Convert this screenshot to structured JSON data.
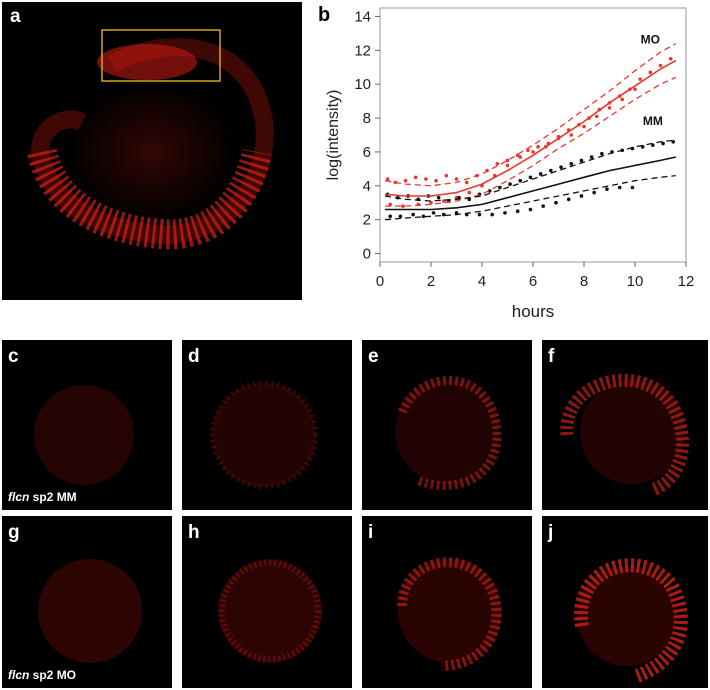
{
  "panels": {
    "a": {
      "letter": "a"
    },
    "b": {
      "letter": "b"
    },
    "c": {
      "letter": "c",
      "caption_italic": "flcn",
      "caption_rest": " sp2 MM"
    },
    "d": {
      "letter": "d"
    },
    "e": {
      "letter": "e"
    },
    "f": {
      "letter": "f"
    },
    "g": {
      "letter": "g",
      "caption_italic": "flcn",
      "caption_rest": " sp2 MO"
    },
    "h": {
      "letter": "h"
    },
    "i": {
      "letter": "i"
    },
    "j": {
      "letter": "j"
    }
  },
  "colors": {
    "mo": "#e8392e",
    "mm": "#111111",
    "signal": "#c81a14",
    "box": "#d8a21c"
  },
  "chart_data": {
    "type": "line",
    "xlabel": "hours",
    "ylabel": "log(intensity)",
    "xlim": [
      0,
      12
    ],
    "ylim": [
      -0.5,
      14.5
    ],
    "xticks": [
      0,
      2,
      4,
      6,
      8,
      10,
      12
    ],
    "yticks": [
      0,
      2,
      4,
      6,
      8,
      10,
      12,
      14
    ],
    "annotations": [
      {
        "text": "MO",
        "x": 10.6,
        "y": 12.4
      },
      {
        "text": "MM",
        "x": 10.7,
        "y": 7.6
      }
    ],
    "series": [
      {
        "name": "MO fit",
        "color": "#e8392e",
        "style": "solid",
        "x": [
          0.2,
          1,
          2,
          3,
          4,
          5,
          6,
          7,
          8,
          9,
          10,
          11,
          11.6
        ],
        "y": [
          3.5,
          3.4,
          3.4,
          3.6,
          4.1,
          4.9,
          5.8,
          6.8,
          7.8,
          8.9,
          9.9,
          10.9,
          11.4
        ]
      },
      {
        "name": "MO upper bound",
        "color": "#e8392e",
        "style": "dashed",
        "x": [
          0.2,
          1,
          2,
          3,
          4,
          5,
          6,
          7,
          8,
          9,
          10,
          11,
          11.6
        ],
        "y": [
          4.3,
          4.1,
          4.0,
          4.2,
          4.7,
          5.5,
          6.4,
          7.4,
          8.5,
          9.6,
          10.8,
          11.9,
          12.4
        ]
      },
      {
        "name": "MO lower bound",
        "color": "#e8392e",
        "style": "dashed",
        "x": [
          0.2,
          1,
          2,
          3,
          4,
          5,
          6,
          7,
          8,
          9,
          10,
          11,
          11.6
        ],
        "y": [
          2.8,
          2.8,
          2.9,
          3.1,
          3.5,
          4.3,
          5.2,
          6.2,
          7.1,
          8.1,
          9.1,
          10.0,
          10.4
        ]
      },
      {
        "name": "MM fit",
        "color": "#111111",
        "style": "solid",
        "x": [
          0.2,
          1,
          2,
          3,
          4,
          5,
          6,
          7,
          8,
          9,
          10,
          11,
          11.6
        ],
        "y": [
          2.6,
          2.6,
          2.6,
          2.7,
          2.9,
          3.3,
          3.7,
          4.1,
          4.5,
          4.9,
          5.2,
          5.5,
          5.7
        ]
      },
      {
        "name": "MM upper bound",
        "color": "#111111",
        "style": "dashed",
        "x": [
          0.2,
          1,
          2,
          3,
          4,
          5,
          6,
          7,
          8,
          9,
          10,
          11,
          11.6
        ],
        "y": [
          3.4,
          3.2,
          3.1,
          3.2,
          3.4,
          3.9,
          4.4,
          4.9,
          5.4,
          5.9,
          6.3,
          6.6,
          6.7
        ]
      },
      {
        "name": "MM lower bound",
        "color": "#111111",
        "style": "dashed",
        "x": [
          0.2,
          1,
          2,
          3,
          4,
          5,
          6,
          7,
          8,
          9,
          10,
          11,
          11.6
        ],
        "y": [
          2.0,
          2.1,
          2.2,
          2.3,
          2.5,
          2.8,
          3.1,
          3.4,
          3.7,
          4.0,
          4.3,
          4.5,
          4.6
        ]
      }
    ],
    "scatter": [
      {
        "name": "MO points",
        "color": "#e8392e",
        "x": [
          0.3,
          0.6,
          1.0,
          1.4,
          1.8,
          2.2,
          2.6,
          3.0,
          3.4,
          3.8,
          4.2,
          4.6,
          5.0,
          5.4,
          5.8,
          6.2,
          6.6,
          7.0,
          7.4,
          7.8,
          8.2,
          8.6,
          9.0,
          9.4,
          9.8,
          10.2,
          10.6,
          11.0,
          11.4,
          0.4,
          0.9,
          1.5,
          2.0,
          2.5,
          3.0,
          3.5,
          4.0,
          4.5,
          5.0,
          5.5,
          6.0,
          6.5,
          7.0,
          7.5,
          8.0,
          8.5,
          9.0,
          9.5,
          10.0
        ],
        "y": [
          4.4,
          4.2,
          4.3,
          4.5,
          4.4,
          4.3,
          4.6,
          4.4,
          4.2,
          4.6,
          4.9,
          5.3,
          5.5,
          5.8,
          6.1,
          6.3,
          6.5,
          6.9,
          7.3,
          7.6,
          8.0,
          8.5,
          8.9,
          9.3,
          9.7,
          10.3,
          10.7,
          11.1,
          11.5,
          2.9,
          2.8,
          2.9,
          3.0,
          3.1,
          3.3,
          3.6,
          4.0,
          4.6,
          5.2,
          5.7,
          6.0,
          6.3,
          6.8,
          7.0,
          7.5,
          8.1,
          8.6,
          9.1,
          9.7
        ]
      },
      {
        "name": "MM points",
        "color": "#111111",
        "x": [
          0.3,
          0.7,
          1.1,
          1.5,
          1.9,
          2.3,
          2.7,
          3.1,
          3.5,
          3.9,
          4.3,
          4.7,
          5.1,
          5.5,
          5.9,
          6.3,
          6.7,
          7.1,
          7.5,
          7.9,
          8.3,
          8.7,
          9.1,
          9.5,
          9.9,
          10.3,
          10.7,
          11.1,
          11.5,
          0.4,
          0.8,
          1.3,
          1.7,
          2.1,
          2.5,
          3.0,
          3.4,
          3.9,
          4.4,
          4.9,
          5.4,
          5.9,
          6.4,
          6.9,
          7.4,
          7.9,
          8.4,
          8.9,
          9.4,
          9.9
        ],
        "y": [
          3.5,
          3.3,
          3.4,
          3.2,
          3.4,
          3.3,
          3.1,
          3.3,
          3.2,
          3.5,
          3.7,
          3.9,
          4.1,
          4.3,
          4.5,
          4.7,
          4.9,
          5.1,
          5.3,
          5.5,
          5.7,
          5.9,
          6.0,
          6.1,
          6.2,
          6.3,
          6.4,
          6.5,
          6.6,
          2.2,
          2.2,
          2.3,
          2.2,
          2.4,
          2.3,
          2.4,
          2.3,
          2.3,
          2.3,
          2.4,
          2.5,
          2.6,
          2.8,
          3.0,
          3.2,
          3.4,
          3.6,
          3.8,
          3.9,
          3.9
        ]
      }
    ]
  }
}
